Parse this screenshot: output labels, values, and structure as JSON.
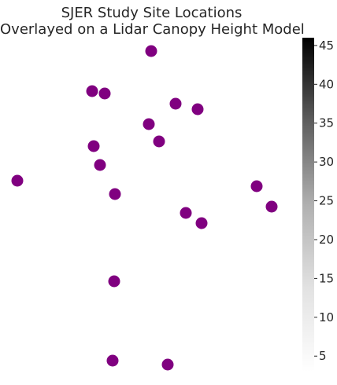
{
  "chart_data": {
    "type": "scatter",
    "title": [
      "SJER Study Site Locations",
      "Overlayed on a Lidar Canopy Height Model"
    ],
    "xlabel": "",
    "ylabel": "",
    "marker_color": "#800080",
    "x": [
      192,
      117,
      133,
      223,
      251,
      189,
      202,
      119,
      127,
      22,
      146,
      326,
      345,
      236,
      256,
      145,
      143,
      213
    ],
    "y": [
      65,
      116,
      119,
      132,
      139,
      158,
      180,
      186,
      210,
      230,
      247,
      237,
      263,
      271,
      284,
      358,
      459,
      464
    ],
    "colorbar": {
      "cmap": "Greys",
      "range": [
        3,
        46
      ],
      "ticks": [
        5,
        10,
        15,
        20,
        25,
        30,
        35,
        40,
        45
      ]
    }
  }
}
